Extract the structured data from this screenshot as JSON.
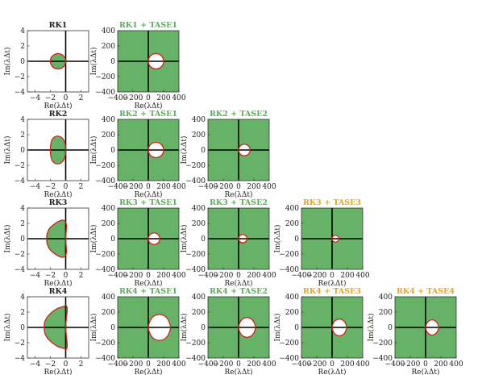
{
  "figure": {
    "bg_color": "#ffffff",
    "stable_fill": "#66b266",
    "boundary_color": "#d61f1f",
    "axis_color": "#000000"
  },
  "chart_data": [
    {
      "id": "rk1",
      "type": "area",
      "title": "RK1",
      "title_color": "#222222",
      "xlabel": "Re(λΔt)",
      "ylabel": "Im(λΔt)",
      "xlim": [
        -5,
        3
      ],
      "ylim": [
        -4,
        4
      ],
      "xticks": [
        -4,
        -2,
        0,
        2
      ],
      "yticks": [
        -4,
        -2,
        0,
        2,
        4
      ],
      "xtick_labels": [
        "−4",
        "−2",
        "0",
        "2"
      ],
      "ytick_labels": [
        "−4",
        "−2",
        "0",
        "2",
        "4"
      ],
      "region": {
        "kind": "inside",
        "boundary": [
          [
            0,
            0
          ],
          [
            -0.29,
            0.71
          ],
          [
            -1,
            1
          ],
          [
            -1.71,
            0.71
          ],
          [
            -2,
            0
          ],
          [
            -1.71,
            -0.71
          ],
          [
            -1,
            -1
          ],
          [
            -0.29,
            -0.71
          ],
          [
            0,
            0
          ]
        ]
      }
    },
    {
      "id": "rk1-tase1",
      "type": "area",
      "title": "RK1 + TASE1",
      "title_color": "#5aab5a",
      "xlabel": "Re(λΔt)",
      "ylabel": "Im(λΔt)",
      "xlim": [
        -400,
        400
      ],
      "ylim": [
        -400,
        400
      ],
      "xticks": [
        -400,
        -200,
        0,
        200,
        400
      ],
      "yticks": [
        -400,
        -200,
        0,
        200,
        400
      ],
      "xtick_labels": [
        "−400",
        "−200",
        "0",
        "200",
        "400"
      ],
      "ytick_labels": [
        "−400",
        "−200",
        "0",
        "200",
        "400"
      ],
      "region": {
        "kind": "outside",
        "boundary": [
          [
            0,
            0
          ],
          [
            29,
            71
          ],
          [
            100,
            100
          ],
          [
            171,
            71
          ],
          [
            200,
            0
          ],
          [
            171,
            -71
          ],
          [
            100,
            -100
          ],
          [
            29,
            -71
          ],
          [
            0,
            0
          ]
        ]
      }
    },
    {
      "id": "rk2",
      "type": "area",
      "title": "RK2",
      "title_color": "#222222",
      "xlabel": "Re(λΔt)",
      "ylabel": "Im(λΔt)",
      "xlim": [
        -5,
        3
      ],
      "ylim": [
        -4,
        4
      ],
      "xticks": [
        -4,
        -2,
        0,
        2
      ],
      "yticks": [
        -4,
        -2,
        0,
        2,
        4
      ],
      "xtick_labels": [
        "−4",
        "−2",
        "0",
        "2"
      ],
      "ytick_labels": [
        "−4",
        "−2",
        "0",
        "2",
        "4"
      ],
      "region": {
        "kind": "inside",
        "boundary": [
          [
            0,
            0
          ],
          [
            -0.1,
            0.9
          ],
          [
            -0.5,
            1.6
          ],
          [
            -1.2,
            1.8
          ],
          [
            -1.8,
            1.3
          ],
          [
            -2,
            0
          ],
          [
            -1.8,
            -1.3
          ],
          [
            -1.2,
            -1.8
          ],
          [
            -0.5,
            -1.6
          ],
          [
            -0.1,
            -0.9
          ],
          [
            0,
            0
          ]
        ]
      }
    },
    {
      "id": "rk2-tase1",
      "type": "area",
      "title": "RK2 + TASE1",
      "title_color": "#5aab5a",
      "xlabel": "Re(λΔt)",
      "ylabel": "Im(λΔt)",
      "xlim": [
        -400,
        400
      ],
      "ylim": [
        -400,
        400
      ],
      "xticks": [
        -400,
        -200,
        0,
        200,
        400
      ],
      "yticks": [
        -400,
        -200,
        0,
        200,
        400
      ],
      "xtick_labels": [
        "−400",
        "−200",
        "0",
        "200",
        "400"
      ],
      "ytick_labels": [
        "−400",
        "−200",
        "0",
        "200",
        "400"
      ],
      "region": {
        "kind": "outside",
        "boundary": [
          [
            0,
            0
          ],
          [
            29,
            71
          ],
          [
            100,
            100
          ],
          [
            171,
            71
          ],
          [
            200,
            0
          ],
          [
            171,
            -71
          ],
          [
            100,
            -100
          ],
          [
            29,
            -71
          ],
          [
            0,
            0
          ]
        ]
      }
    },
    {
      "id": "rk2-tase2",
      "type": "area",
      "title": "RK2 + TASE2",
      "title_color": "#5aab5a",
      "xlabel": "Re(λΔt)",
      "ylabel": "Im(λΔt)",
      "xlim": [
        -400,
        400
      ],
      "ylim": [
        -400,
        400
      ],
      "xticks": [
        -400,
        -200,
        0,
        200,
        400
      ],
      "yticks": [
        -400,
        -200,
        0,
        200,
        400
      ],
      "xtick_labels": [
        "−400",
        "−200",
        "0",
        "200",
        "400"
      ],
      "ytick_labels": [
        "−400",
        "−200",
        "0",
        "200",
        "400"
      ],
      "region": {
        "kind": "outside",
        "boundary": [
          [
            0,
            0
          ],
          [
            22,
            53
          ],
          [
            75,
            75
          ],
          [
            128,
            53
          ],
          [
            150,
            0
          ],
          [
            128,
            -53
          ],
          [
            75,
            -75
          ],
          [
            22,
            -53
          ],
          [
            0,
            0
          ]
        ]
      }
    },
    {
      "id": "rk3",
      "type": "area",
      "title": "RK3",
      "title_color": "#222222",
      "xlabel": "Re(λΔt)",
      "ylabel": "Im(λΔt)",
      "xlim": [
        -5,
        3
      ],
      "ylim": [
        -4,
        4
      ],
      "xticks": [
        -4,
        -2,
        0,
        2
      ],
      "yticks": [
        -4,
        -2,
        0,
        2,
        4
      ],
      "xtick_labels": [
        "−4",
        "−2",
        "0",
        "2"
      ],
      "ytick_labels": [
        "−4",
        "−2",
        "0",
        "2",
        "4"
      ],
      "region": {
        "kind": "inside",
        "boundary": [
          [
            0,
            0
          ],
          [
            0.1,
            1.7
          ],
          [
            -0.1,
            2.3
          ],
          [
            -0.6,
            2.4
          ],
          [
            -1.5,
            1.9
          ],
          [
            -2.2,
            1.2
          ],
          [
            -2.5,
            0
          ],
          [
            -2.2,
            -1.2
          ],
          [
            -1.5,
            -1.9
          ],
          [
            -0.6,
            -2.4
          ],
          [
            -0.1,
            -2.3
          ],
          [
            0.1,
            -1.7
          ],
          [
            0,
            0
          ]
        ]
      }
    },
    {
      "id": "rk3-tase1",
      "type": "area",
      "title": "RK3 + TASE1",
      "title_color": "#5aab5a",
      "xlabel": "Re(λΔt)",
      "ylabel": "Im(λΔt)",
      "xlim": [
        -400,
        400
      ],
      "ylim": [
        -400,
        400
      ],
      "xticks": [
        -400,
        -200,
        0,
        200,
        400
      ],
      "yticks": [
        -400,
        -200,
        0,
        200,
        400
      ],
      "xtick_labels": [
        "−400",
        "−200",
        "0",
        "200",
        "400"
      ],
      "ytick_labels": [
        "−400",
        "−200",
        "0",
        "200",
        "400"
      ],
      "region": {
        "kind": "outside",
        "boundary": [
          [
            0,
            0
          ],
          [
            22,
            53
          ],
          [
            75,
            75
          ],
          [
            128,
            53
          ],
          [
            150,
            0
          ],
          [
            128,
            -53
          ],
          [
            75,
            -75
          ],
          [
            22,
            -53
          ],
          [
            0,
            0
          ]
        ]
      }
    },
    {
      "id": "rk3-tase2",
      "type": "area",
      "title": "RK3 + TASE2",
      "title_color": "#5aab5a",
      "xlabel": "Re(λΔt)",
      "ylabel": "Im(λΔt)",
      "xlim": [
        -400,
        400
      ],
      "ylim": [
        -400,
        400
      ],
      "xticks": [
        -400,
        -200,
        0,
        200,
        400
      ],
      "yticks": [
        -400,
        -200,
        0,
        200,
        400
      ],
      "xtick_labels": [
        "−400",
        "−200",
        "0",
        "200",
        "400"
      ],
      "ytick_labels": [
        "−400",
        "−200",
        "0",
        "200",
        "400"
      ],
      "region": {
        "kind": "outside",
        "boundary": [
          [
            0,
            0
          ],
          [
            16,
            38
          ],
          [
            55,
            55
          ],
          [
            94,
            38
          ],
          [
            110,
            0
          ],
          [
            94,
            -38
          ],
          [
            55,
            -55
          ],
          [
            16,
            -38
          ],
          [
            0,
            0
          ]
        ]
      }
    },
    {
      "id": "rk3-tase3",
      "type": "area",
      "title": "RK3 + TASE3",
      "title_color": "#e6a51e",
      "xlabel": "Re(λΔt)",
      "ylabel": "Im(λΔt)",
      "xlim": [
        -400,
        400
      ],
      "ylim": [
        -400,
        400
      ],
      "xticks": [
        -400,
        -200,
        0,
        200,
        400
      ],
      "yticks": [
        -400,
        -200,
        0,
        200,
        400
      ],
      "xtick_labels": [
        "−400",
        "−200",
        "0",
        "200",
        "400"
      ],
      "ytick_labels": [
        "−400",
        "−200",
        "0",
        "200",
        "400"
      ],
      "region": {
        "kind": "outside",
        "boundary": [
          [
            0,
            0
          ],
          [
            13,
            31
          ],
          [
            45,
            45
          ],
          [
            77,
            31
          ],
          [
            90,
            0
          ],
          [
            77,
            -31
          ],
          [
            45,
            -45
          ],
          [
            13,
            -31
          ],
          [
            0,
            0
          ]
        ]
      }
    },
    {
      "id": "rk4",
      "type": "area",
      "title": "RK4",
      "title_color": "#222222",
      "xlabel": "Re(λΔt)",
      "ylabel": "Im(λΔt)",
      "xlim": [
        -5,
        3
      ],
      "ylim": [
        -4,
        4
      ],
      "xticks": [
        -4,
        -2,
        0,
        2
      ],
      "yticks": [
        -4,
        -2,
        0,
        2,
        4
      ],
      "xtick_labels": [
        "−4",
        "−2",
        "0",
        "2"
      ],
      "ytick_labels": [
        "−4",
        "−2",
        "0",
        "2",
        "4"
      ],
      "region": {
        "kind": "inside",
        "boundary": [
          [
            0,
            0
          ],
          [
            0.1,
            1.2
          ],
          [
            0.2,
            2.3
          ],
          [
            0.1,
            2.8
          ],
          [
            -0.4,
            2.7
          ],
          [
            -1.2,
            2.4
          ],
          [
            -2.2,
            1.6
          ],
          [
            -2.7,
            0.8
          ],
          [
            -2.8,
            0
          ],
          [
            -2.7,
            -0.8
          ],
          [
            -2.2,
            -1.6
          ],
          [
            -1.2,
            -2.4
          ],
          [
            -0.4,
            -2.7
          ],
          [
            0.1,
            -2.8
          ],
          [
            0.2,
            -2.3
          ],
          [
            0.1,
            -1.2
          ],
          [
            0,
            0
          ]
        ]
      }
    },
    {
      "id": "rk4-tase1",
      "type": "area",
      "title": "RK4 + TASE1",
      "title_color": "#5aab5a",
      "xlabel": "Re(λΔt)",
      "ylabel": "Im(λΔt)",
      "xlim": [
        -400,
        400
      ],
      "ylim": [
        -400,
        400
      ],
      "xticks": [
        -400,
        -200,
        0,
        200,
        400
      ],
      "yticks": [
        -400,
        -200,
        0,
        200,
        400
      ],
      "xtick_labels": [
        "−400",
        "−200",
        "0",
        "200",
        "400"
      ],
      "ytick_labels": [
        "−400",
        "−200",
        "0",
        "200",
        "400"
      ],
      "region": {
        "kind": "outside",
        "boundary": [
          [
            0,
            0
          ],
          [
            25,
            88
          ],
          [
            70,
            145
          ],
          [
            145,
            170
          ],
          [
            220,
            145
          ],
          [
            265,
            88
          ],
          [
            290,
            0
          ],
          [
            265,
            -88
          ],
          [
            220,
            -145
          ],
          [
            145,
            -170
          ],
          [
            70,
            -145
          ],
          [
            25,
            -88
          ],
          [
            0,
            0
          ]
        ]
      }
    },
    {
      "id": "rk4-tase2",
      "type": "area",
      "title": "RK4 + TASE2",
      "title_color": "#5aab5a",
      "xlabel": "Re(λΔt)",
      "ylabel": "Im(λΔt)",
      "xlim": [
        -400,
        400
      ],
      "ylim": [
        -400,
        400
      ],
      "xticks": [
        -400,
        -200,
        0,
        200,
        400
      ],
      "yticks": [
        -400,
        -200,
        0,
        200,
        400
      ],
      "xtick_labels": [
        "−400",
        "−200",
        "0",
        "200",
        "400"
      ],
      "ytick_labels": [
        "−400",
        "−200",
        "0",
        "200",
        "400"
      ],
      "region": {
        "kind": "outside",
        "boundary": [
          [
            0,
            0
          ],
          [
            18,
            66
          ],
          [
            53,
            110
          ],
          [
            110,
            130
          ],
          [
            167,
            110
          ],
          [
            202,
            66
          ],
          [
            220,
            0
          ],
          [
            202,
            -66
          ],
          [
            167,
            -110
          ],
          [
            110,
            -130
          ],
          [
            53,
            -110
          ],
          [
            18,
            -66
          ],
          [
            0,
            0
          ]
        ]
      }
    },
    {
      "id": "rk4-tase3",
      "type": "area",
      "title": "RK4 + TASE3",
      "title_color": "#e6a51e",
      "xlabel": "Re(λΔt)",
      "ylabel": "Im(λΔt)",
      "xlim": [
        -400,
        400
      ],
      "ylim": [
        -400,
        400
      ],
      "xticks": [
        -400,
        -200,
        0,
        200,
        400
      ],
      "yticks": [
        -400,
        -200,
        0,
        200,
        400
      ],
      "xtick_labels": [
        "−400",
        "−200",
        "0",
        "200",
        "400"
      ],
      "ytick_labels": [
        "−400",
        "−200",
        "0",
        "200",
        "400"
      ],
      "region": {
        "kind": "outside",
        "boundary": [
          [
            0,
            0
          ],
          [
            16,
            56
          ],
          [
            45,
            92
          ],
          [
            95,
            110
          ],
          [
            145,
            92
          ],
          [
            174,
            56
          ],
          [
            190,
            0
          ],
          [
            174,
            -56
          ],
          [
            145,
            -92
          ],
          [
            95,
            -110
          ],
          [
            45,
            -92
          ],
          [
            16,
            -56
          ],
          [
            0,
            0
          ]
        ]
      }
    },
    {
      "id": "rk4-tase4",
      "type": "area",
      "title": "RK4 + TASE4",
      "title_color": "#e6a51e",
      "xlabel": "Re(λΔt)",
      "ylabel": "Im(λΔt)",
      "xlim": [
        -400,
        400
      ],
      "ylim": [
        -400,
        400
      ],
      "xticks": [
        -400,
        -200,
        0,
        200,
        400
      ],
      "yticks": [
        -400,
        -200,
        0,
        200,
        400
      ],
      "xtick_labels": [
        "−400",
        "−200",
        "0",
        "200",
        "400"
      ],
      "ytick_labels": [
        "−400",
        "−200",
        "0",
        "200",
        "400"
      ],
      "region": {
        "kind": "outside",
        "boundary": [
          [
            0,
            0
          ],
          [
            14,
            50
          ],
          [
            40,
            82
          ],
          [
            85,
            100
          ],
          [
            130,
            82
          ],
          [
            156,
            50
          ],
          [
            170,
            0
          ],
          [
            156,
            -50
          ],
          [
            130,
            -82
          ],
          [
            85,
            -100
          ],
          [
            40,
            -82
          ],
          [
            14,
            -50
          ],
          [
            0,
            0
          ]
        ]
      }
    }
  ]
}
